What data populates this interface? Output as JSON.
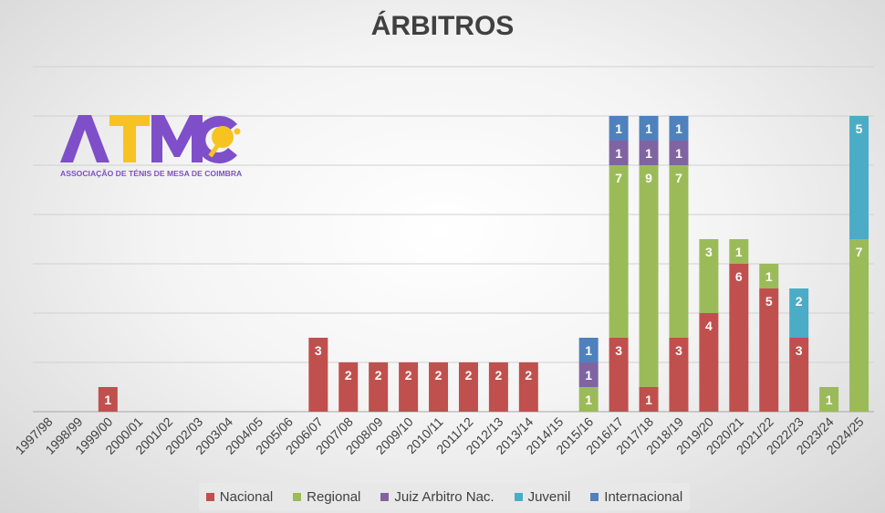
{
  "logo": {
    "letters": "ATMC",
    "subtitle": "ASSOCIAÇÃO DE TÉNIS DE MESA DE COIMBRA",
    "colors": {
      "purple": "#7e4fc9",
      "yellow": "#f7c321"
    }
  },
  "chart_data": {
    "type": "bar",
    "stacked": true,
    "title": "ÁRBITROS",
    "categories": [
      "1997/98",
      "1998/99",
      "1999/00",
      "2000/01",
      "2001/02",
      "2002/03",
      "2003/04",
      "2004/05",
      "2005/06",
      "2006/07",
      "2007/08",
      "2008/09",
      "2009/10",
      "2010/11",
      "2011/12",
      "2012/13",
      "2013/14",
      "2014/15",
      "2015/16",
      "2016/17",
      "2017/18",
      "2018/19",
      "2019/20",
      "2020/21",
      "2021/22",
      "2022/23",
      "2023/24",
      "2024/25"
    ],
    "series": [
      {
        "name": "Nacional",
        "color": "#c0504d",
        "values": [
          0,
          0,
          1,
          0,
          0,
          0,
          0,
          0,
          0,
          3,
          2,
          2,
          2,
          2,
          2,
          2,
          2,
          0,
          0,
          3,
          1,
          3,
          4,
          6,
          5,
          3,
          0,
          0
        ]
      },
      {
        "name": "Regional",
        "color": "#9bbb59",
        "values": [
          0,
          0,
          0,
          0,
          0,
          0,
          0,
          0,
          0,
          0,
          0,
          0,
          0,
          0,
          0,
          0,
          0,
          0,
          1,
          7,
          9,
          7,
          3,
          1,
          1,
          0,
          1,
          7
        ]
      },
      {
        "name": "Juiz Arbitro Nac.",
        "color": "#8064a2",
        "values": [
          0,
          0,
          0,
          0,
          0,
          0,
          0,
          0,
          0,
          0,
          0,
          0,
          0,
          0,
          0,
          0,
          0,
          0,
          1,
          1,
          1,
          1,
          0,
          0,
          0,
          0,
          0,
          0
        ]
      },
      {
        "name": "Juvenil",
        "color": "#4bacc6",
        "values": [
          0,
          0,
          0,
          0,
          0,
          0,
          0,
          0,
          0,
          0,
          0,
          0,
          0,
          0,
          0,
          0,
          0,
          0,
          0,
          0,
          0,
          0,
          0,
          0,
          0,
          2,
          0,
          5
        ]
      },
      {
        "name": "Internacional",
        "color": "#4f81bd",
        "values": [
          0,
          0,
          0,
          0,
          0,
          0,
          0,
          0,
          0,
          0,
          0,
          0,
          0,
          0,
          0,
          0,
          0,
          0,
          1,
          1,
          1,
          1,
          0,
          0,
          0,
          0,
          0,
          0
        ]
      }
    ],
    "ylim": [
      0,
      14
    ],
    "grid": true,
    "legend": "bottom"
  }
}
